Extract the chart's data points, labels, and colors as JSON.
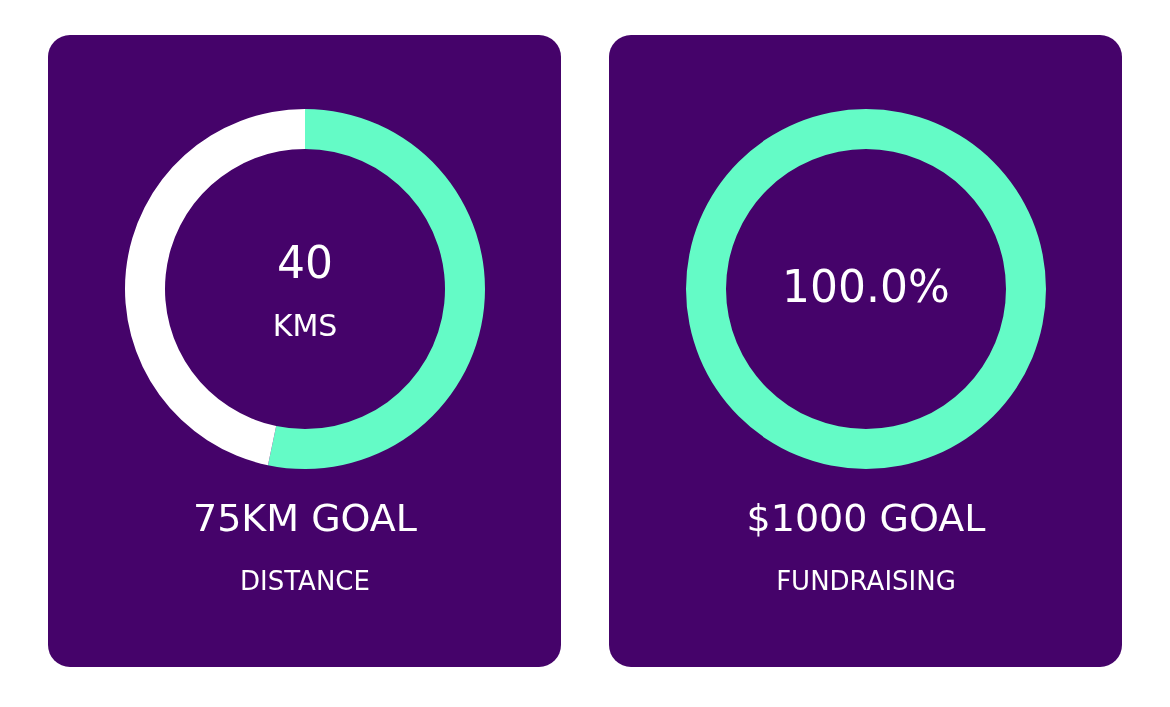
{
  "chart_data": [
    {
      "type": "donut",
      "categories": [
        null,
        null
      ],
      "values": [
        53.3,
        46.7
      ],
      "colors": [
        "#64fbc6",
        "#ffffff"
      ],
      "annotations": [
        "40",
        "KMS",
        "75KM GOAL",
        "DISTANCE"
      ]
    },
    {
      "type": "donut",
      "categories": [
        null
      ],
      "values": [
        100
      ],
      "colors": [
        "#64fbc6"
      ],
      "annotations": [
        "100.0%",
        "$1000 GOAL",
        "FUNDRAISING"
      ]
    }
  ]
}
